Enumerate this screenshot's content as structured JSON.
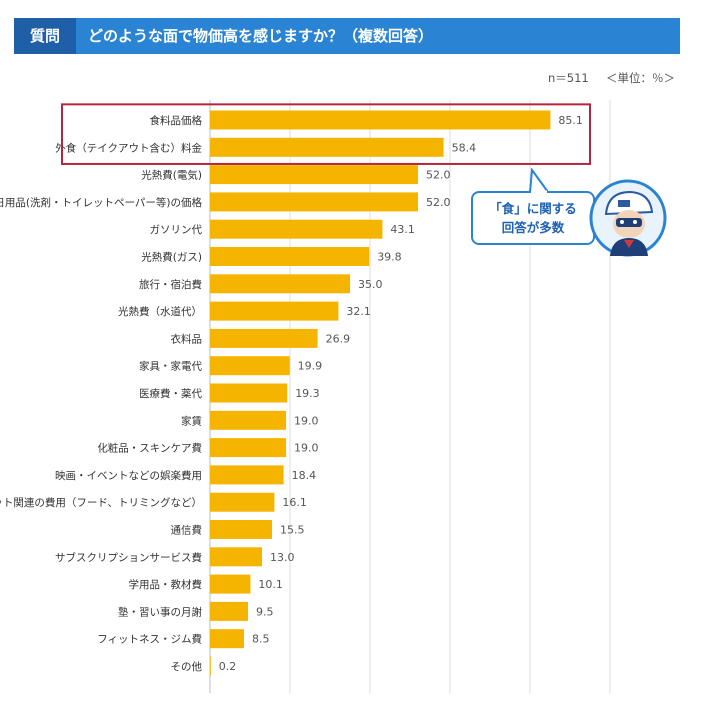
{
  "header": {
    "question_label": "質問",
    "question_text": "どのような面で物価高を感じますか？（複数回答）"
  },
  "meta": {
    "sample_size": "n＝511",
    "unit": "＜単位：％＞"
  },
  "callout": {
    "line1": "「食」に関する",
    "line2": "回答が多数"
  },
  "colors": {
    "bar": "#f5b400",
    "header_bg": "#2b84d3",
    "header_tag": "#1e5fa8",
    "highlight_border": "#b5253d",
    "grid": "#d8dde6"
  },
  "chart_data": {
    "type": "bar",
    "orientation": "horizontal",
    "title": "",
    "xlabel": "",
    "ylabel": "",
    "xlim": [
      0,
      100
    ],
    "grid": true,
    "highlighted_categories": [
      "食料品価格",
      "外食（テイクアウト含む）料金"
    ],
    "categories": [
      "食料品価格",
      "外食（テイクアウト含む）料金",
      "光熱費(電気)",
      "日用品(洗剤・トイレットペーパー等)の価格",
      "ガソリン代",
      "光熱費(ガス)",
      "旅行・宿泊費",
      "光熱費（水道代）",
      "衣料品",
      "家具・家電代",
      "医療費・薬代",
      "家賃",
      "化粧品・スキンケア費",
      "映画・イベントなどの娯楽費用",
      "ペット関連の費用（フード、トリミングなど）",
      "通信費",
      "サブスクリプションサービス費",
      "学用品・教材費",
      "塾・習い事の月謝",
      "フィットネス・ジム費",
      "その他"
    ],
    "values": [
      85.1,
      58.4,
      52.0,
      52.0,
      43.1,
      39.8,
      35.0,
      32.1,
      26.9,
      19.9,
      19.3,
      19.0,
      19.0,
      18.4,
      16.1,
      15.5,
      13.0,
      10.1,
      9.5,
      8.5,
      0.2
    ],
    "value_labels": [
      "85.1",
      "58.4",
      "52.0",
      "52.0",
      "43.1",
      "39.8",
      "35.0",
      "32.1",
      "26.9",
      "19.9",
      "19.3",
      "19.0",
      "19.0",
      "18.4",
      "16.1",
      "15.5",
      "13.0",
      "10.1",
      "9.5",
      "8.5",
      "0.2"
    ]
  }
}
